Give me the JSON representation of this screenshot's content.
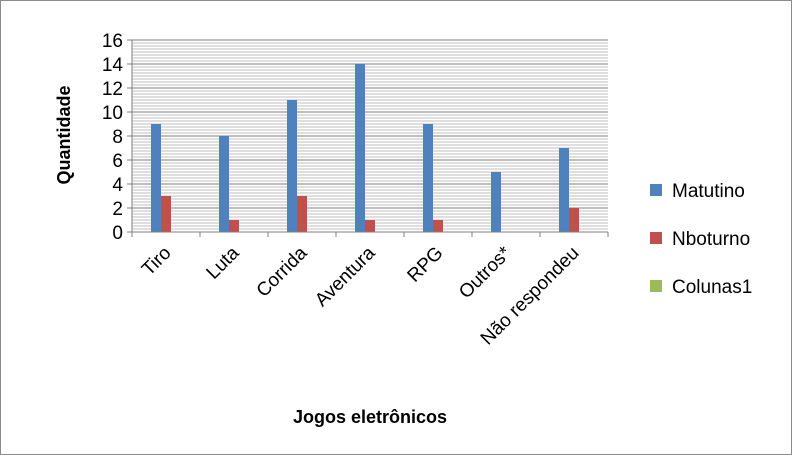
{
  "chart_data": {
    "type": "bar",
    "title": "",
    "xlabel": "Jogos eletrônicos",
    "ylabel": "Quantidade",
    "ylim": [
      0,
      16
    ],
    "y_ticks": [
      "0",
      "2",
      "4",
      "6",
      "8",
      "10",
      "12",
      "14",
      "16"
    ],
    "categories": [
      "Tiro",
      "Luta",
      "Corrida",
      "Aventura",
      "RPG",
      "Outros*",
      "Não respondeu"
    ],
    "series": [
      {
        "name": "Matutino",
        "color": "#4f81bd",
        "values": [
          9,
          8,
          11,
          14,
          9,
          5,
          7
        ]
      },
      {
        "name": "Nboturno",
        "color": "#c0504d",
        "values": [
          3,
          1,
          3,
          1,
          1,
          0,
          2
        ]
      },
      {
        "name": "Colunas1",
        "color": "#9bbb59",
        "values": [
          0,
          0,
          0,
          0,
          0,
          0,
          0
        ]
      }
    ],
    "grid": true,
    "legend_position": "right"
  }
}
